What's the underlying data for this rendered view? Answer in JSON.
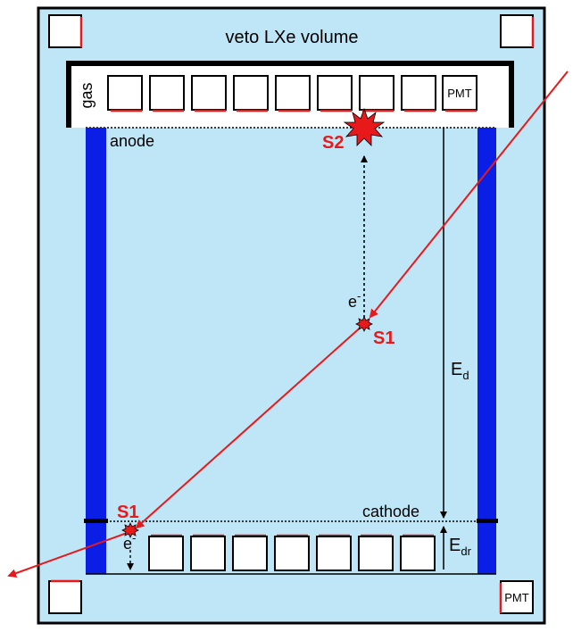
{
  "labels": {
    "veto": "veto LXe volume",
    "gas": "gas",
    "pmt": "PMT",
    "anode": "anode",
    "cathode": "cathode",
    "s2": "S2",
    "s1_top": "S1",
    "s1_bottom": "S1",
    "electron_top": "e",
    "electron_bottom": "e",
    "electron_sup": "-",
    "ed_main": "E",
    "ed_sub": "d",
    "edr_main": "E",
    "edr_sub": "dr"
  },
  "colors": {
    "veto_fill": "#bfe6f7",
    "electrode_blue": "#0a1ee6",
    "event_red": "#e8191a",
    "outline": "#000000"
  },
  "counts": {
    "top_pmts": 8,
    "bottom_pmts": 7
  }
}
